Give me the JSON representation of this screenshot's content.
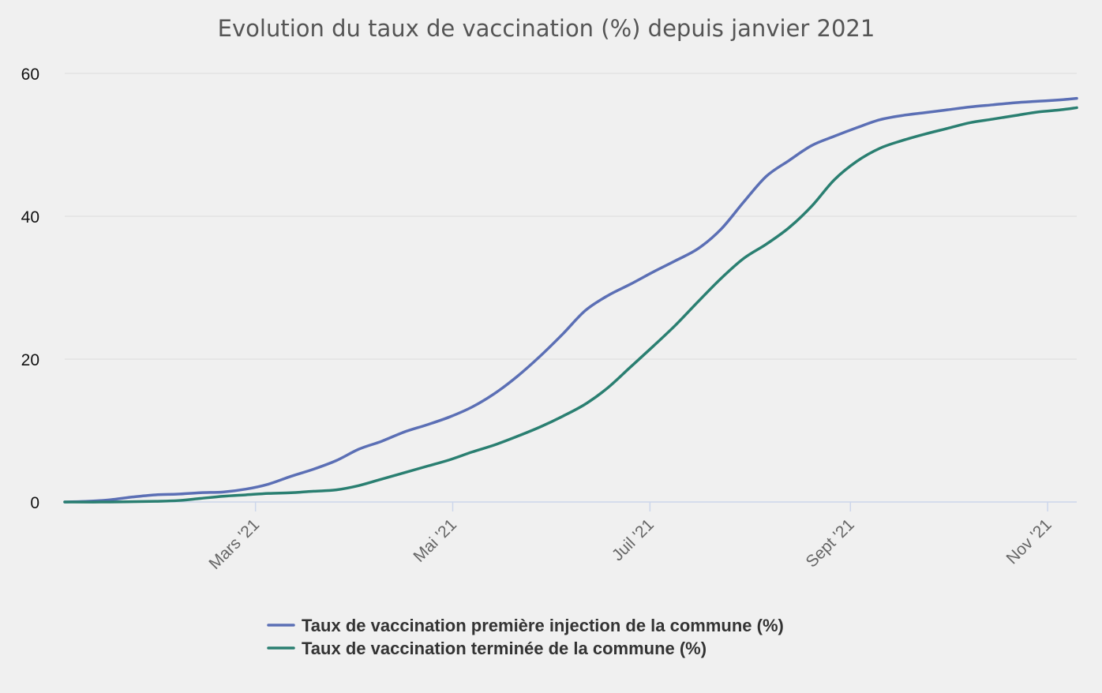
{
  "chart_data": {
    "type": "line",
    "title": "Evolution du taux de vaccination (%) depuis janvier 2021",
    "xlabel": "",
    "ylabel": "",
    "x_axis": {
      "type": "date",
      "range": [
        "2021-01-01",
        "2021-11-10"
      ],
      "ticks": [
        {
          "date": "2021-03-01",
          "label": "Mars '21"
        },
        {
          "date": "2021-05-01",
          "label": "Mai '21"
        },
        {
          "date": "2021-07-01",
          "label": "Juil '21"
        },
        {
          "date": "2021-09-01",
          "label": "Sept '21"
        },
        {
          "date": "2021-11-01",
          "label": "Nov '21"
        }
      ]
    },
    "y_axis": {
      "range": [
        0,
        60
      ],
      "ticks": [
        0,
        20,
        40,
        60
      ]
    },
    "grid": true,
    "legend_position": "bottom-center",
    "series": [
      {
        "name": "Taux de vaccination première injection de la commune (%)",
        "color": "#5b6fb5",
        "points": [
          [
            "2021-01-01",
            0.0
          ],
          [
            "2021-01-08",
            0.1
          ],
          [
            "2021-01-15",
            0.3
          ],
          [
            "2021-01-22",
            0.7
          ],
          [
            "2021-01-29",
            1.0
          ],
          [
            "2021-02-05",
            1.1
          ],
          [
            "2021-02-12",
            1.3
          ],
          [
            "2021-02-19",
            1.4
          ],
          [
            "2021-02-26",
            1.8
          ],
          [
            "2021-03-05",
            2.5
          ],
          [
            "2021-03-12",
            3.6
          ],
          [
            "2021-03-19",
            4.6
          ],
          [
            "2021-03-26",
            5.8
          ],
          [
            "2021-04-02",
            7.4
          ],
          [
            "2021-04-09",
            8.5
          ],
          [
            "2021-04-16",
            9.8
          ],
          [
            "2021-04-23",
            10.8
          ],
          [
            "2021-04-30",
            11.9
          ],
          [
            "2021-05-07",
            13.3
          ],
          [
            "2021-05-14",
            15.2
          ],
          [
            "2021-05-21",
            17.6
          ],
          [
            "2021-05-28",
            20.4
          ],
          [
            "2021-06-04",
            23.5
          ],
          [
            "2021-06-11",
            26.8
          ],
          [
            "2021-06-18",
            28.9
          ],
          [
            "2021-06-25",
            30.5
          ],
          [
            "2021-07-02",
            32.2
          ],
          [
            "2021-07-09",
            33.8
          ],
          [
            "2021-07-16",
            35.5
          ],
          [
            "2021-07-23",
            38.2
          ],
          [
            "2021-07-30",
            42.0
          ],
          [
            "2021-08-06",
            45.6
          ],
          [
            "2021-08-13",
            47.8
          ],
          [
            "2021-08-20",
            49.9
          ],
          [
            "2021-08-27",
            51.2
          ],
          [
            "2021-09-03",
            52.4
          ],
          [
            "2021-09-10",
            53.5
          ],
          [
            "2021-09-17",
            54.1
          ],
          [
            "2021-09-24",
            54.5
          ],
          [
            "2021-10-01",
            54.9
          ],
          [
            "2021-10-08",
            55.3
          ],
          [
            "2021-10-15",
            55.6
          ],
          [
            "2021-10-22",
            55.9
          ],
          [
            "2021-10-29",
            56.1
          ],
          [
            "2021-11-05",
            56.3
          ],
          [
            "2021-11-10",
            56.5
          ]
        ]
      },
      {
        "name": "Taux de vaccination terminée de la commune (%)",
        "color": "#2a7f71",
        "points": [
          [
            "2021-01-01",
            0.0
          ],
          [
            "2021-01-15",
            0.0
          ],
          [
            "2021-01-29",
            0.1
          ],
          [
            "2021-02-05",
            0.2
          ],
          [
            "2021-02-12",
            0.5
          ],
          [
            "2021-02-19",
            0.8
          ],
          [
            "2021-02-26",
            1.0
          ],
          [
            "2021-03-05",
            1.2
          ],
          [
            "2021-03-12",
            1.3
          ],
          [
            "2021-03-19",
            1.5
          ],
          [
            "2021-03-26",
            1.7
          ],
          [
            "2021-04-02",
            2.3
          ],
          [
            "2021-04-09",
            3.2
          ],
          [
            "2021-04-16",
            4.1
          ],
          [
            "2021-04-23",
            5.0
          ],
          [
            "2021-04-30",
            5.9
          ],
          [
            "2021-05-07",
            7.0
          ],
          [
            "2021-05-14",
            8.0
          ],
          [
            "2021-05-21",
            9.2
          ],
          [
            "2021-05-28",
            10.5
          ],
          [
            "2021-06-04",
            12.0
          ],
          [
            "2021-06-11",
            13.7
          ],
          [
            "2021-06-18",
            16.0
          ],
          [
            "2021-06-25",
            18.9
          ],
          [
            "2021-07-02",
            21.8
          ],
          [
            "2021-07-09",
            24.8
          ],
          [
            "2021-07-16",
            28.1
          ],
          [
            "2021-07-23",
            31.3
          ],
          [
            "2021-07-30",
            34.1
          ],
          [
            "2021-08-06",
            36.1
          ],
          [
            "2021-08-13",
            38.4
          ],
          [
            "2021-08-20",
            41.4
          ],
          [
            "2021-08-27",
            45.1
          ],
          [
            "2021-09-03",
            47.7
          ],
          [
            "2021-09-10",
            49.5
          ],
          [
            "2021-09-17",
            50.6
          ],
          [
            "2021-09-24",
            51.5
          ],
          [
            "2021-10-01",
            52.3
          ],
          [
            "2021-10-08",
            53.1
          ],
          [
            "2021-10-15",
            53.6
          ],
          [
            "2021-10-22",
            54.1
          ],
          [
            "2021-10-29",
            54.6
          ],
          [
            "2021-11-05",
            54.9
          ],
          [
            "2021-11-10",
            55.2
          ]
        ]
      }
    ]
  }
}
